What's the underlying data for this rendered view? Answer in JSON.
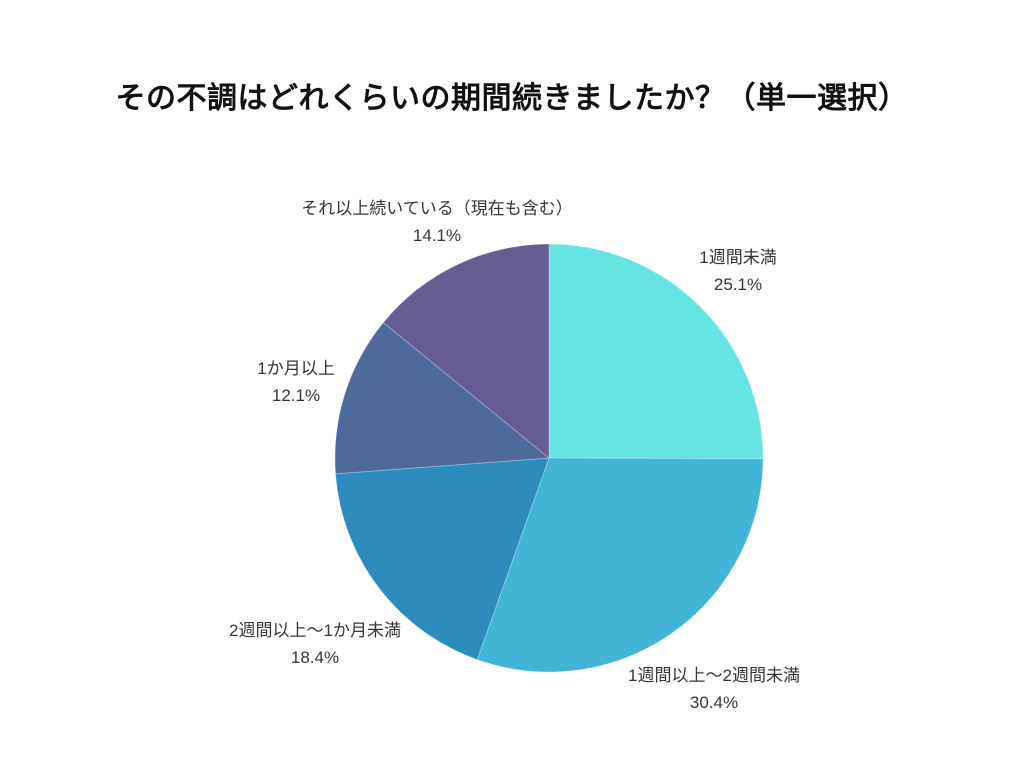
{
  "page": {
    "background_color": "#FFFFFF"
  },
  "chart_data": {
    "type": "pie",
    "title": "その不調はどれくらいの期間続きましたか？（単一選択）",
    "start_angle": "top",
    "direction": "clockwise",
    "legend": "none",
    "label_position": "outside",
    "slices": [
      {
        "label": "1週間未満",
        "value": 25.1,
        "color": "#66E4E3"
      },
      {
        "label": "1週間以上～2週間未満",
        "value": 30.4,
        "color": "#42B4D6"
      },
      {
        "label": "2週間以上～1か月未満",
        "value": 18.4,
        "color": "#2E8BBE"
      },
      {
        "label": "1か月以上",
        "value": 12.1,
        "color": "#4F6B9D"
      },
      {
        "label": "それ以上続いている（現在も含む）",
        "value": 14.1,
        "color": "#655D93"
      }
    ]
  }
}
